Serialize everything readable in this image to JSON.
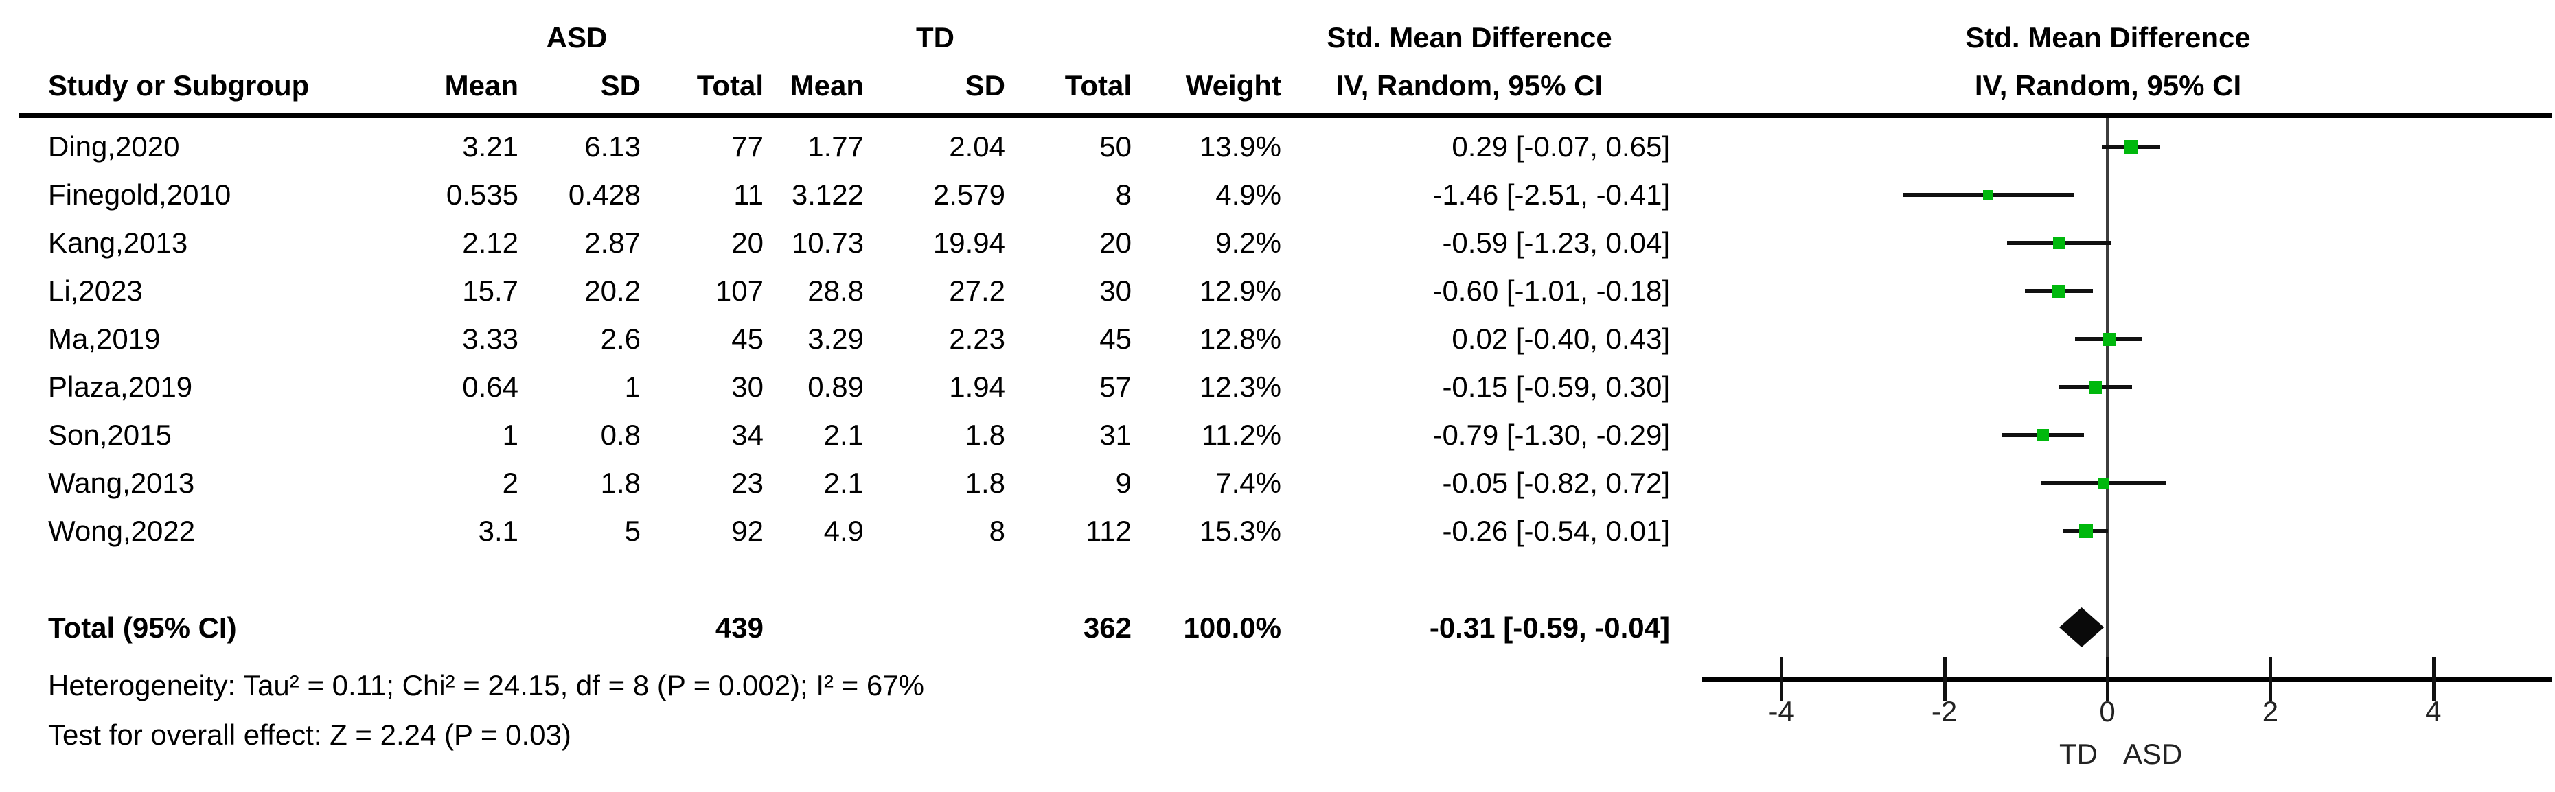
{
  "labels": {
    "study_col": "Study or Subgroup",
    "group1": "ASD",
    "group2": "TD",
    "mean": "Mean",
    "sd": "SD",
    "total": "Total",
    "weight": "Weight",
    "effect_title": "Std. Mean Difference",
    "effect_sub": "IV, Random, 95% CI",
    "plot_title": "Std. Mean Difference",
    "plot_sub": "IV, Random, 95% CI",
    "axis_left": "TD",
    "axis_right": "ASD",
    "total_label": "Total (95% CI)",
    "heterogeneity": "Heterogeneity: Tau² = 0.11; Chi² = 24.15, df = 8 (P = 0.002); I² = 67%",
    "overall": "Test for overall effect: Z = 2.24 (P = 0.03)"
  },
  "colors": {
    "marker_green": "#00b80d",
    "line_black": "#111111",
    "zero_line_gray": "#3d3d3d"
  },
  "chart_data": {
    "type": "scatter",
    "variant": "forest-plot-random-effects-meta-analysis",
    "title": "Std. Mean Difference",
    "effect_measure": "IV, Random, 95% CI",
    "x_ticks": [
      -4,
      -2,
      0,
      2,
      4
    ],
    "x_tick_labels": [
      "-4",
      "-2",
      "0",
      "2",
      "4"
    ],
    "xlim": [
      -5,
      5.4
    ],
    "xlabel_left": "TD",
    "xlabel_right": "ASD",
    "grid": false,
    "studies": [
      {
        "name": "Ding,2020",
        "asd_mean": "3.21",
        "asd_sd": "6.13",
        "asd_total": "77",
        "td_mean": "1.77",
        "td_sd": "2.04",
        "td_total": "50",
        "weight": "13.9%",
        "ci_text": "0.29 [-0.07, 0.65]",
        "smd": 0.29,
        "ci_low": -0.07,
        "ci_high": 0.65,
        "weight_pct": 13.9
      },
      {
        "name": "Finegold,2010",
        "asd_mean": "0.535",
        "asd_sd": "0.428",
        "asd_total": "11",
        "td_mean": "3.122",
        "td_sd": "2.579",
        "td_total": "8",
        "weight": "4.9%",
        "ci_text": "-1.46 [-2.51, -0.41]",
        "smd": -1.46,
        "ci_low": -2.51,
        "ci_high": -0.41,
        "weight_pct": 4.9
      },
      {
        "name": "Kang,2013",
        "asd_mean": "2.12",
        "asd_sd": "2.87",
        "asd_total": "20",
        "td_mean": "10.73",
        "td_sd": "19.94",
        "td_total": "20",
        "weight": "9.2%",
        "ci_text": "-0.59 [-1.23, 0.04]",
        "smd": -0.59,
        "ci_low": -1.23,
        "ci_high": 0.04,
        "weight_pct": 9.2
      },
      {
        "name": "Li,2023",
        "asd_mean": "15.7",
        "asd_sd": "20.2",
        "asd_total": "107",
        "td_mean": "28.8",
        "td_sd": "27.2",
        "td_total": "30",
        "weight": "12.9%",
        "ci_text": "-0.60 [-1.01, -0.18]",
        "smd": -0.6,
        "ci_low": -1.01,
        "ci_high": -0.18,
        "weight_pct": 12.9
      },
      {
        "name": "Ma,2019",
        "asd_mean": "3.33",
        "asd_sd": "2.6",
        "asd_total": "45",
        "td_mean": "3.29",
        "td_sd": "2.23",
        "td_total": "45",
        "weight": "12.8%",
        "ci_text": "0.02 [-0.40, 0.43]",
        "smd": 0.02,
        "ci_low": -0.4,
        "ci_high": 0.43,
        "weight_pct": 12.8
      },
      {
        "name": "Plaza,2019",
        "asd_mean": "0.64",
        "asd_sd": "1",
        "asd_total": "30",
        "td_mean": "0.89",
        "td_sd": "1.94",
        "td_total": "57",
        "weight": "12.3%",
        "ci_text": "-0.15 [-0.59, 0.30]",
        "smd": -0.15,
        "ci_low": -0.59,
        "ci_high": 0.3,
        "weight_pct": 12.3
      },
      {
        "name": "Son,2015",
        "asd_mean": "1",
        "asd_sd": "0.8",
        "asd_total": "34",
        "td_mean": "2.1",
        "td_sd": "1.8",
        "td_total": "31",
        "weight": "11.2%",
        "ci_text": "-0.79 [-1.30, -0.29]",
        "smd": -0.79,
        "ci_low": -1.3,
        "ci_high": -0.29,
        "weight_pct": 11.2
      },
      {
        "name": "Wang,2013",
        "asd_mean": "2",
        "asd_sd": "1.8",
        "asd_total": "23",
        "td_mean": "2.1",
        "td_sd": "1.8",
        "td_total": "9",
        "weight": "7.4%",
        "ci_text": "-0.05 [-0.82, 0.72]",
        "smd": -0.05,
        "ci_low": -0.82,
        "ci_high": 0.72,
        "weight_pct": 7.4
      },
      {
        "name": "Wong,2022",
        "asd_mean": "3.1",
        "asd_sd": "5",
        "asd_total": "92",
        "td_mean": "4.9",
        "td_sd": "8",
        "td_total": "112",
        "weight": "15.3%",
        "ci_text": "-0.26 [-0.54, 0.01]",
        "smd": -0.26,
        "ci_low": -0.54,
        "ci_high": 0.01,
        "weight_pct": 15.3
      }
    ],
    "total": {
      "label": "Total (95% CI)",
      "asd_total": "439",
      "td_total": "362",
      "weight": "100.0%",
      "ci_text": "-0.31 [-0.59, -0.04]",
      "smd": -0.31,
      "ci_low": -0.59,
      "ci_high": -0.04
    },
    "heterogeneity": "Heterogeneity: Tau² = 0.11; Chi² = 24.15, df = 8 (P = 0.002); I² = 67%",
    "overall_effect": "Test for overall effect: Z = 2.24 (P = 0.03)"
  }
}
